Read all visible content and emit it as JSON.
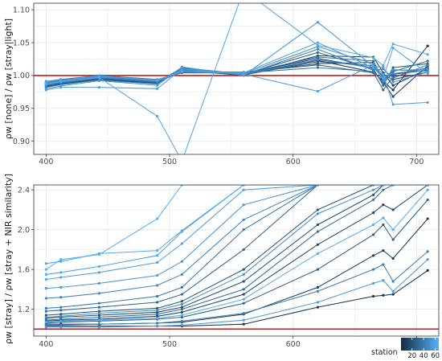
{
  "chart_data": [
    {
      "type": "line",
      "panel": "top",
      "xlabel": "",
      "ylabel": "ρw [none] / ρw [stray|light]",
      "xlim": [
        390,
        718
      ],
      "ylim": [
        0.88,
        1.11
      ],
      "xticks": [
        400,
        500,
        600,
        700
      ],
      "yticks": [
        0.9,
        0.95,
        1.0,
        1.05,
        1.1
      ],
      "ytick_labels": [
        "0.90",
        "0.95",
        "1.00",
        "1.05",
        "1.10"
      ],
      "grid": true,
      "reference_line": {
        "y": 1.0,
        "color": "#c41a1a"
      },
      "x": [
        400,
        412,
        443,
        490,
        510,
        560,
        620,
        665,
        673,
        681,
        709
      ],
      "series": [
        {
          "values": [
            0.989,
            0.992,
            0.999,
            0.993,
            1.006,
            1.002,
            1.023,
            1.005,
            0.991,
            0.978,
            1.045
          ],
          "station": 5
        },
        {
          "values": [
            0.983,
            0.987,
            0.994,
            0.988,
            1.008,
            1.0,
            1.03,
            1.028,
            1.004,
            0.985,
            1.01
          ],
          "station": 10
        },
        {
          "values": [
            0.99,
            0.993,
            0.998,
            0.992,
            1.005,
            1.004,
            1.018,
            1.02,
            0.99,
            0.968,
            1.015
          ],
          "station": 14
        },
        {
          "values": [
            0.987,
            0.99,
            0.996,
            0.991,
            1.01,
            1.003,
            1.026,
            1.011,
            1.0,
            0.994,
            1.005
          ],
          "station": 18
        },
        {
          "values": [
            0.986,
            0.991,
            0.997,
            0.99,
            1.007,
            1.001,
            1.021,
            1.015,
            0.995,
            1.002,
            1.008
          ],
          "station": 22
        },
        {
          "values": [
            0.984,
            0.988,
            0.995,
            0.989,
            1.012,
            1.002,
            1.035,
            1.01,
            0.985,
            1.012,
            1.018
          ],
          "station": 26
        },
        {
          "values": [
            0.988,
            0.992,
            0.999,
            0.992,
            1.006,
            1.005,
            1.016,
            1.004,
            0.978,
            0.998,
            1.012
          ],
          "station": 30
        },
        {
          "values": [
            0.985,
            0.989,
            0.996,
            0.99,
            1.009,
            1.003,
            1.028,
            1.022,
            0.993,
            1.006,
            1.022
          ],
          "station": 34
        },
        {
          "values": [
            0.991,
            0.994,
            1.0,
            0.994,
            1.004,
            1.004,
            1.012,
            1.006,
            0.989,
            1.008,
            1.009
          ],
          "station": 38
        },
        {
          "values": [
            0.982,
            0.986,
            0.993,
            0.987,
            1.011,
            1.001,
            1.04,
            1.008,
            1.01,
            0.996,
            1.016
          ],
          "station": 42
        },
        {
          "values": [
            0.989,
            0.991,
            0.998,
            0.991,
            1.007,
            1.002,
            1.024,
            1.012,
            0.998,
            1.003,
            1.01
          ],
          "station": 46
        },
        {
          "values": [
            0.986,
            0.99,
            0.997,
            0.992,
            1.008,
            1.003,
            1.044,
            1.018,
            0.992,
            1.009,
            1.006
          ],
          "station": 50
        },
        {
          "values": [
            0.98,
            0.984,
            0.992,
            0.985,
            1.013,
            1.0,
            1.081,
            1.014,
            1.012,
            0.99,
            1.005
          ],
          "station": 54
        },
        {
          "values": [
            0.978,
            0.982,
            0.982,
            0.98,
            1.01,
            1.002,
            0.976,
            1.016,
            1.002,
            0.956,
            0.959
          ],
          "station": 57
        },
        {
          "values": [
            0.99,
            0.993,
            0.999,
            0.993,
            1.006,
            1.004,
            1.05,
            1.012,
            0.996,
            1.042,
            1.003
          ],
          "station": 60
        },
        {
          "values": [
            0.987,
            0.991,
            0.997,
            0.938,
            0.87,
            1.13,
            1.046,
            1.027,
            1.015,
            1.048,
            1.032
          ],
          "station": 62
        }
      ]
    },
    {
      "type": "line",
      "panel": "bottom",
      "xlabel": "",
      "ylabel": "ρw [stray] / ρw [stray + NIR similarity]",
      "xlim": [
        390,
        718
      ],
      "ylim": [
        0.93,
        2.45
      ],
      "xticks": [
        400,
        500,
        600,
        700
      ],
      "yticks": [
        1.2,
        1.6,
        2.0,
        2.4
      ],
      "ytick_labels": [
        "1.2",
        "1.6",
        "2.0",
        "2.4"
      ],
      "grid": true,
      "reference_line": {
        "y": 1.0,
        "color": "#c41a1a"
      },
      "x": [
        400,
        412,
        443,
        490,
        510,
        560,
        620,
        665,
        673,
        681,
        709
      ],
      "series": [
        {
          "values": [
            1.03,
            1.03,
            1.03,
            1.03,
            1.03,
            1.05,
            1.22,
            1.33,
            1.34,
            1.35,
            1.59
          ],
          "station": 5
        },
        {
          "values": [
            1.05,
            1.05,
            1.05,
            1.06,
            1.07,
            1.15,
            1.42,
            1.74,
            1.79,
            1.71,
            2.11
          ],
          "station": 10
        },
        {
          "values": [
            1.08,
            1.09,
            1.1,
            1.13,
            1.17,
            1.35,
            1.85,
            2.17,
            2.25,
            2.2,
            2.45
          ],
          "station": 14
        },
        {
          "values": [
            1.11,
            1.12,
            1.14,
            1.17,
            1.22,
            1.48,
            2.05,
            2.35,
            2.45,
            2.45,
            2.45
          ],
          "station": 18
        },
        {
          "values": [
            1.14,
            1.15,
            1.18,
            1.21,
            1.28,
            1.6,
            2.2,
            2.45,
            2.45,
            2.45,
            2.45
          ],
          "station": 22
        },
        {
          "values": [
            1.06,
            1.07,
            1.08,
            1.1,
            1.12,
            1.26,
            1.6,
            1.95,
            2.05,
            1.9,
            2.3
          ],
          "station": 26
        },
        {
          "values": [
            1.18,
            1.19,
            1.22,
            1.27,
            1.35,
            1.8,
            2.45,
            2.45,
            2.45,
            2.45,
            2.45
          ],
          "station": 30
        },
        {
          "values": [
            1.09,
            1.1,
            1.12,
            1.15,
            1.2,
            1.4,
            1.98,
            2.3,
            2.4,
            2.45,
            2.45
          ],
          "station": 34
        },
        {
          "values": [
            1.21,
            1.22,
            1.26,
            1.33,
            1.42,
            2.0,
            2.45,
            2.45,
            2.45,
            2.45,
            2.45
          ],
          "station": 38
        },
        {
          "values": [
            1.04,
            1.04,
            1.05,
            1.06,
            1.08,
            1.16,
            1.38,
            1.6,
            1.65,
            1.48,
            1.78
          ],
          "station": 42
        },
        {
          "values": [
            1.31,
            1.32,
            1.36,
            1.44,
            1.55,
            2.1,
            2.45,
            2.45,
            2.45,
            2.45,
            2.45
          ],
          "station": 46
        },
        {
          "values": [
            1.12,
            1.13,
            1.16,
            1.19,
            1.25,
            1.55,
            2.16,
            2.4,
            2.45,
            2.45,
            2.45
          ],
          "station": 50
        },
        {
          "values": [
            1.41,
            1.42,
            1.46,
            1.54,
            1.68,
            2.25,
            2.45,
            2.45,
            2.45,
            2.45,
            2.45
          ],
          "station": 53
        },
        {
          "values": [
            1.02,
            1.02,
            1.02,
            1.03,
            1.04,
            1.09,
            1.27,
            1.46,
            1.49,
            1.38,
            1.7
          ],
          "station": 56
        },
        {
          "values": [
            1.5,
            1.52,
            1.57,
            1.67,
            1.86,
            2.4,
            2.45,
            2.45,
            2.45,
            2.45,
            2.45
          ],
          "station": 58
        },
        {
          "values": [
            1.55,
            1.57,
            1.63,
            1.74,
            1.98,
            2.45,
            2.45,
            2.45,
            2.45,
            2.45,
            2.45
          ],
          "station": 60
        },
        {
          "values": [
            1.66,
            1.68,
            1.76,
            1.79,
            1.99,
            2.45,
            2.45,
            2.45,
            2.45,
            2.45,
            2.45
          ],
          "station": 62
        },
        {
          "values": [
            1.07,
            1.08,
            1.09,
            1.11,
            1.14,
            1.3,
            1.76,
            2.05,
            2.12,
            2.0,
            2.4
          ],
          "station": 64
        },
        {
          "values": [
            1.6,
            1.7,
            1.75,
            2.11,
            2.45,
            2.45,
            2.45,
            2.45,
            2.45,
            2.45,
            2.45
          ],
          "station": 66
        }
      ]
    }
  ],
  "legend": {
    "title": "station",
    "tick_labels": [
      "20",
      "40",
      "60"
    ],
    "tick_values": [
      20,
      40,
      60
    ],
    "range": [
      1,
      66
    ],
    "colors": {
      "low": "#132b43",
      "high": "#56b1f7"
    }
  },
  "colors": {
    "reference_line": "#c41a1a",
    "grid": "#ebebeb",
    "panel_border": "#333333"
  }
}
